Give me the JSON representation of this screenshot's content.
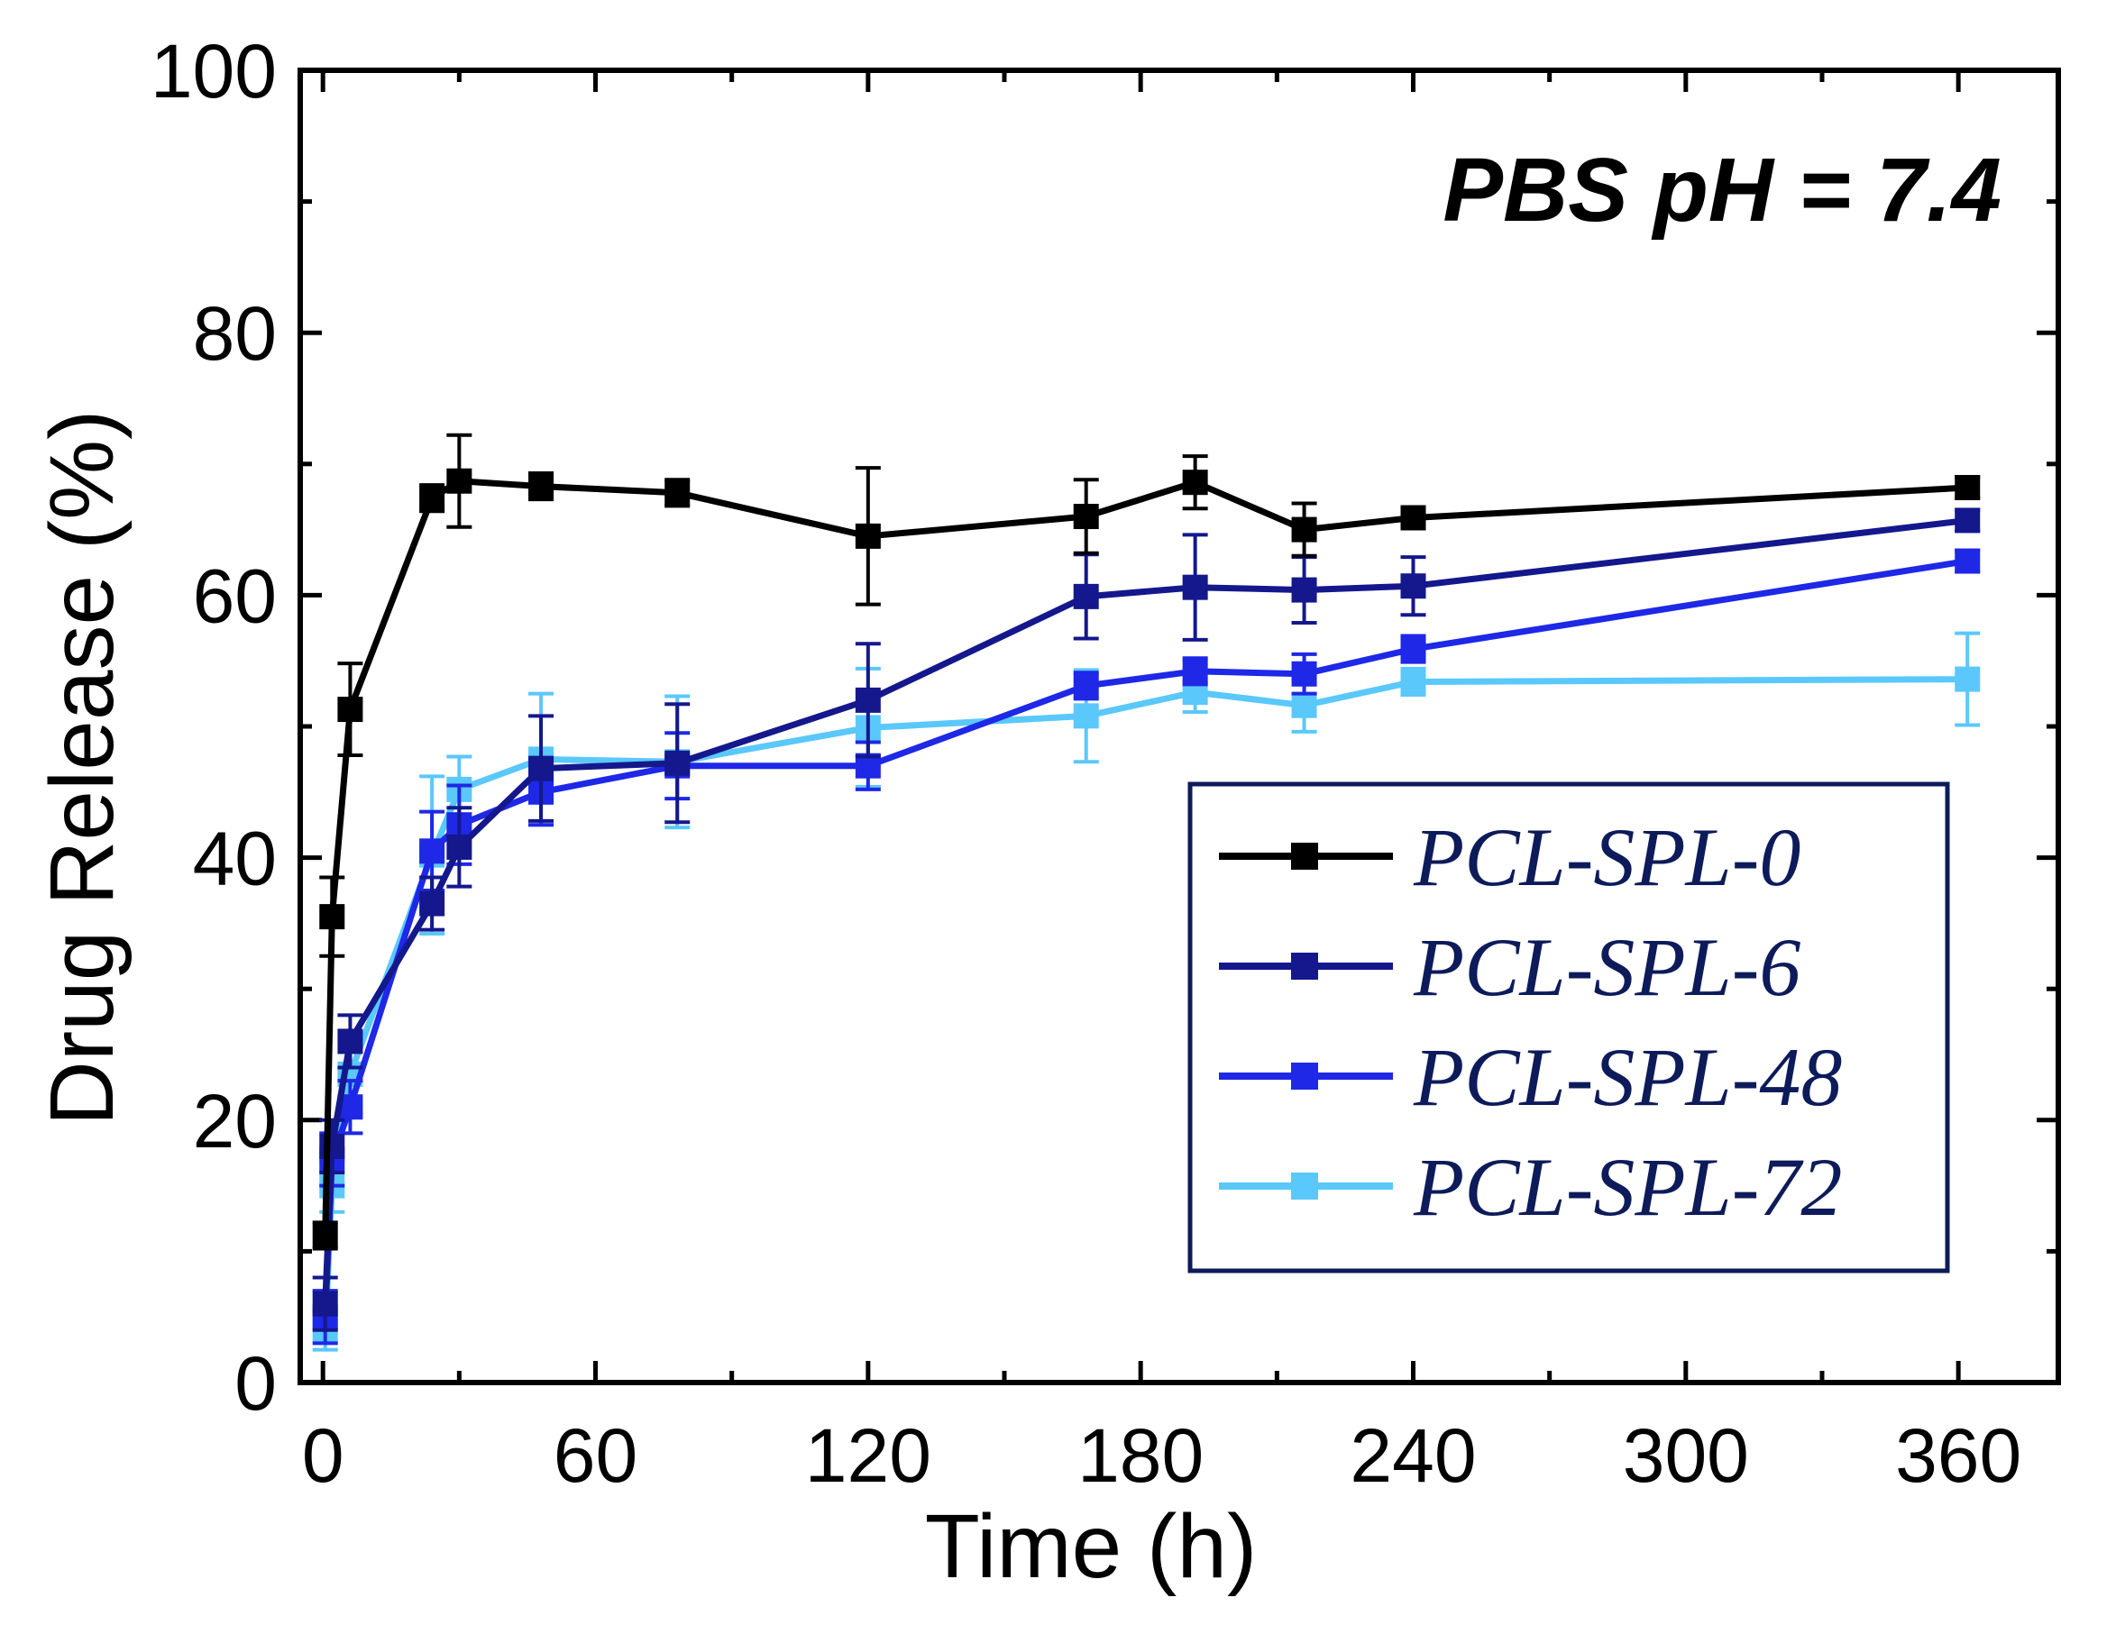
{
  "chart_data": {
    "type": "line",
    "annotation": "PBS pH = 7.4",
    "xlabel": "Time (h)",
    "ylabel": "Drug Release (%)",
    "xlim": [
      -5,
      382
    ],
    "ylim": [
      0,
      100
    ],
    "xticks": [
      0,
      60,
      120,
      180,
      240,
      300,
      360
    ],
    "yticks": [
      0,
      20,
      40,
      60,
      80,
      100
    ],
    "legend_position": "lower-right",
    "series": [
      {
        "name": "PCL-SPL-0",
        "color": "#000000",
        "points": [
          {
            "x": 0.5,
            "y": 11.2,
            "err": 1.0
          },
          {
            "x": 2,
            "y": 35.5,
            "err": 3.0
          },
          {
            "x": 6,
            "y": 51.3,
            "err": 3.5
          },
          {
            "x": 24,
            "y": 67.4,
            "err": 1.0
          },
          {
            "x": 30,
            "y": 68.7,
            "err": 3.5
          },
          {
            "x": 48,
            "y": 68.3,
            "err": 1.0
          },
          {
            "x": 78,
            "y": 67.8,
            "err": 1.0
          },
          {
            "x": 120,
            "y": 64.5,
            "err": 5.2
          },
          {
            "x": 168,
            "y": 66.0,
            "err": 2.8
          },
          {
            "x": 192,
            "y": 68.6,
            "err": 2.0
          },
          {
            "x": 216,
            "y": 65.0,
            "err": 2.0
          },
          {
            "x": 240,
            "y": 65.9,
            "err": 0.8
          },
          {
            "x": 362,
            "y": 68.2,
            "err": 0.8
          }
        ]
      },
      {
        "name": "PCL-SPL-6",
        "color": "#14188c",
        "points": [
          {
            "x": 0.5,
            "y": 6.0,
            "err": 2.0
          },
          {
            "x": 2,
            "y": 18.0,
            "err": 2.0
          },
          {
            "x": 6,
            "y": 26.0,
            "err": 2.0
          },
          {
            "x": 24,
            "y": 36.5,
            "err": 2.0
          },
          {
            "x": 30,
            "y": 40.8,
            "err": 3.0
          },
          {
            "x": 48,
            "y": 46.8,
            "err": 4.0
          },
          {
            "x": 78,
            "y": 47.2,
            "err": 4.5
          },
          {
            "x": 120,
            "y": 52.0,
            "err": 4.3
          },
          {
            "x": 168,
            "y": 59.9,
            "err": 3.2
          },
          {
            "x": 192,
            "y": 60.6,
            "err": 4.0
          },
          {
            "x": 216,
            "y": 60.4,
            "err": 2.5
          },
          {
            "x": 240,
            "y": 60.7,
            "err": 2.2
          },
          {
            "x": 362,
            "y": 65.7,
            "err": 0.8
          }
        ]
      },
      {
        "name": "PCL-SPL-48",
        "color": "#1e28e6",
        "points": [
          {
            "x": 0.5,
            "y": 5.0,
            "err": 2.0
          },
          {
            "x": 2,
            "y": 17.0,
            "err": 2.0
          },
          {
            "x": 6,
            "y": 21.0,
            "err": 2.0
          },
          {
            "x": 24,
            "y": 40.5,
            "err": 3.0
          },
          {
            "x": 30,
            "y": 42.5,
            "err": 3.0
          },
          {
            "x": 48,
            "y": 45.0,
            "err": 2.5
          },
          {
            "x": 78,
            "y": 47.0,
            "err": 2.5
          },
          {
            "x": 120,
            "y": 47.0,
            "err": 1.8
          },
          {
            "x": 168,
            "y": 53.1,
            "err": 1.0
          },
          {
            "x": 192,
            "y": 54.2,
            "err": 1.0
          },
          {
            "x": 216,
            "y": 54.0,
            "err": 1.5
          },
          {
            "x": 240,
            "y": 55.9,
            "err": 1.0
          },
          {
            "x": 362,
            "y": 62.6,
            "err": 0.8
          }
        ]
      },
      {
        "name": "PCL-SPL-72",
        "color": "#5ac8fa",
        "points": [
          {
            "x": 0.5,
            "y": 4.0,
            "err": 1.5
          },
          {
            "x": 2,
            "y": 15.0,
            "err": 2.0
          },
          {
            "x": 6,
            "y": 23.5,
            "err": 3.0
          },
          {
            "x": 24,
            "y": 40.2,
            "err": 6.0
          },
          {
            "x": 30,
            "y": 45.2,
            "err": 2.5
          },
          {
            "x": 48,
            "y": 47.5,
            "err": 5.0
          },
          {
            "x": 78,
            "y": 47.3,
            "err": 5.0
          },
          {
            "x": 120,
            "y": 49.9,
            "err": 4.5
          },
          {
            "x": 168,
            "y": 50.8,
            "err": 3.5
          },
          {
            "x": 192,
            "y": 52.6,
            "err": 1.5
          },
          {
            "x": 216,
            "y": 51.6,
            "err": 2.0
          },
          {
            "x": 240,
            "y": 53.4,
            "err": 1.0
          },
          {
            "x": 362,
            "y": 53.6,
            "err": 3.5
          }
        ]
      }
    ]
  }
}
